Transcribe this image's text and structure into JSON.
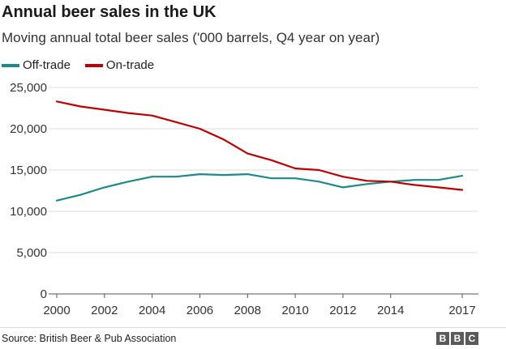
{
  "chart_data": {
    "type": "line",
    "title": "Annual beer sales in the UK",
    "subtitle": "Moving annual total beer sales ('000 barrels, Q4 year on year)",
    "xlabel": "",
    "ylabel": "",
    "x": [
      2000,
      2001,
      2002,
      2003,
      2004,
      2005,
      2006,
      2007,
      2008,
      2009,
      2010,
      2011,
      2012,
      2013,
      2014,
      2015,
      2016,
      2017
    ],
    "x_tick_labels": [
      "2000",
      "2002",
      "2004",
      "2006",
      "2008",
      "2010",
      "2012",
      "2014",
      "2017"
    ],
    "x_tick_values": [
      2000,
      2002,
      2004,
      2006,
      2008,
      2010,
      2012,
      2014,
      2017
    ],
    "xlim": [
      2000,
      2017
    ],
    "y_tick_labels": [
      "0",
      "5,000",
      "10,000",
      "15,000",
      "20,000",
      "25,000"
    ],
    "y_tick_values": [
      0,
      5000,
      10000,
      15000,
      20000,
      25000
    ],
    "ylim": [
      0,
      25000
    ],
    "grid": true,
    "legend_position": "top-left",
    "series": [
      {
        "name": "Off-trade",
        "color": "#1a8a8a",
        "values": [
          11300,
          12000,
          12900,
          13600,
          14200,
          14200,
          14500,
          14400,
          14500,
          14000,
          14000,
          13600,
          12900,
          13300,
          13600,
          13800,
          13800,
          14300
        ]
      },
      {
        "name": "On-trade",
        "color": "#c00000",
        "values": [
          23300,
          22700,
          22300,
          21900,
          21600,
          20800,
          20000,
          18700,
          17000,
          16200,
          15200,
          15000,
          14200,
          13700,
          13600,
          13200,
          12900,
          12600
        ]
      }
    ]
  },
  "footer": {
    "source": "Source: British Beer & Pub Association",
    "logo_letters": [
      "B",
      "B",
      "C"
    ]
  }
}
